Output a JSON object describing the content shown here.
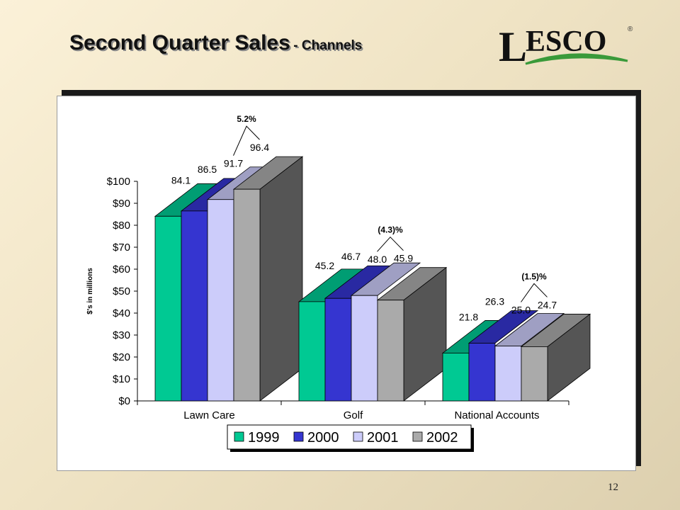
{
  "slide": {
    "title": "Second Quarter Sales",
    "subtitle": "- Channels",
    "page_number": "12",
    "logo_text": "ESCO",
    "logo_initial": "L",
    "logo_mark": "®"
  },
  "colors": {
    "1999": "#00c993",
    "2000": "#3535d0",
    "2001": "#ccccfa",
    "2002": "#aaaaaa",
    "logo_green": "#3a9a3a"
  },
  "chart_data": {
    "type": "bar",
    "categories": [
      "Lawn Care",
      "Golf",
      "National Accounts"
    ],
    "series": [
      {
        "name": "1999",
        "values": [
          84.1,
          45.2,
          21.8
        ]
      },
      {
        "name": "2000",
        "values": [
          86.5,
          46.7,
          26.3
        ]
      },
      {
        "name": "2001",
        "values": [
          91.7,
          48.0,
          25.0
        ]
      },
      {
        "name": "2002",
        "values": [
          96.4,
          45.9,
          24.7
        ]
      }
    ],
    "value_labels": [
      [
        "84.1",
        "86.5",
        "91.7",
        "96.4"
      ],
      [
        "45.2",
        "46.7",
        "48.0",
        "45.9"
      ],
      [
        "21.8",
        "26.3",
        "25.0",
        "24.7"
      ]
    ],
    "changes": [
      "5.2%",
      "(4.3)%",
      "(1.5)%"
    ],
    "ylabel": "$'s in millions",
    "ylim": [
      0,
      100
    ],
    "ytick_step": 10,
    "ytick_labels": [
      "$0",
      "$10",
      "$20",
      "$30",
      "$40",
      "$50",
      "$60",
      "$70",
      "$80",
      "$90",
      "$100"
    ],
    "legend": [
      "1999",
      "2000",
      "2001",
      "2002"
    ],
    "legend_position": "bottom",
    "three_d": true
  }
}
